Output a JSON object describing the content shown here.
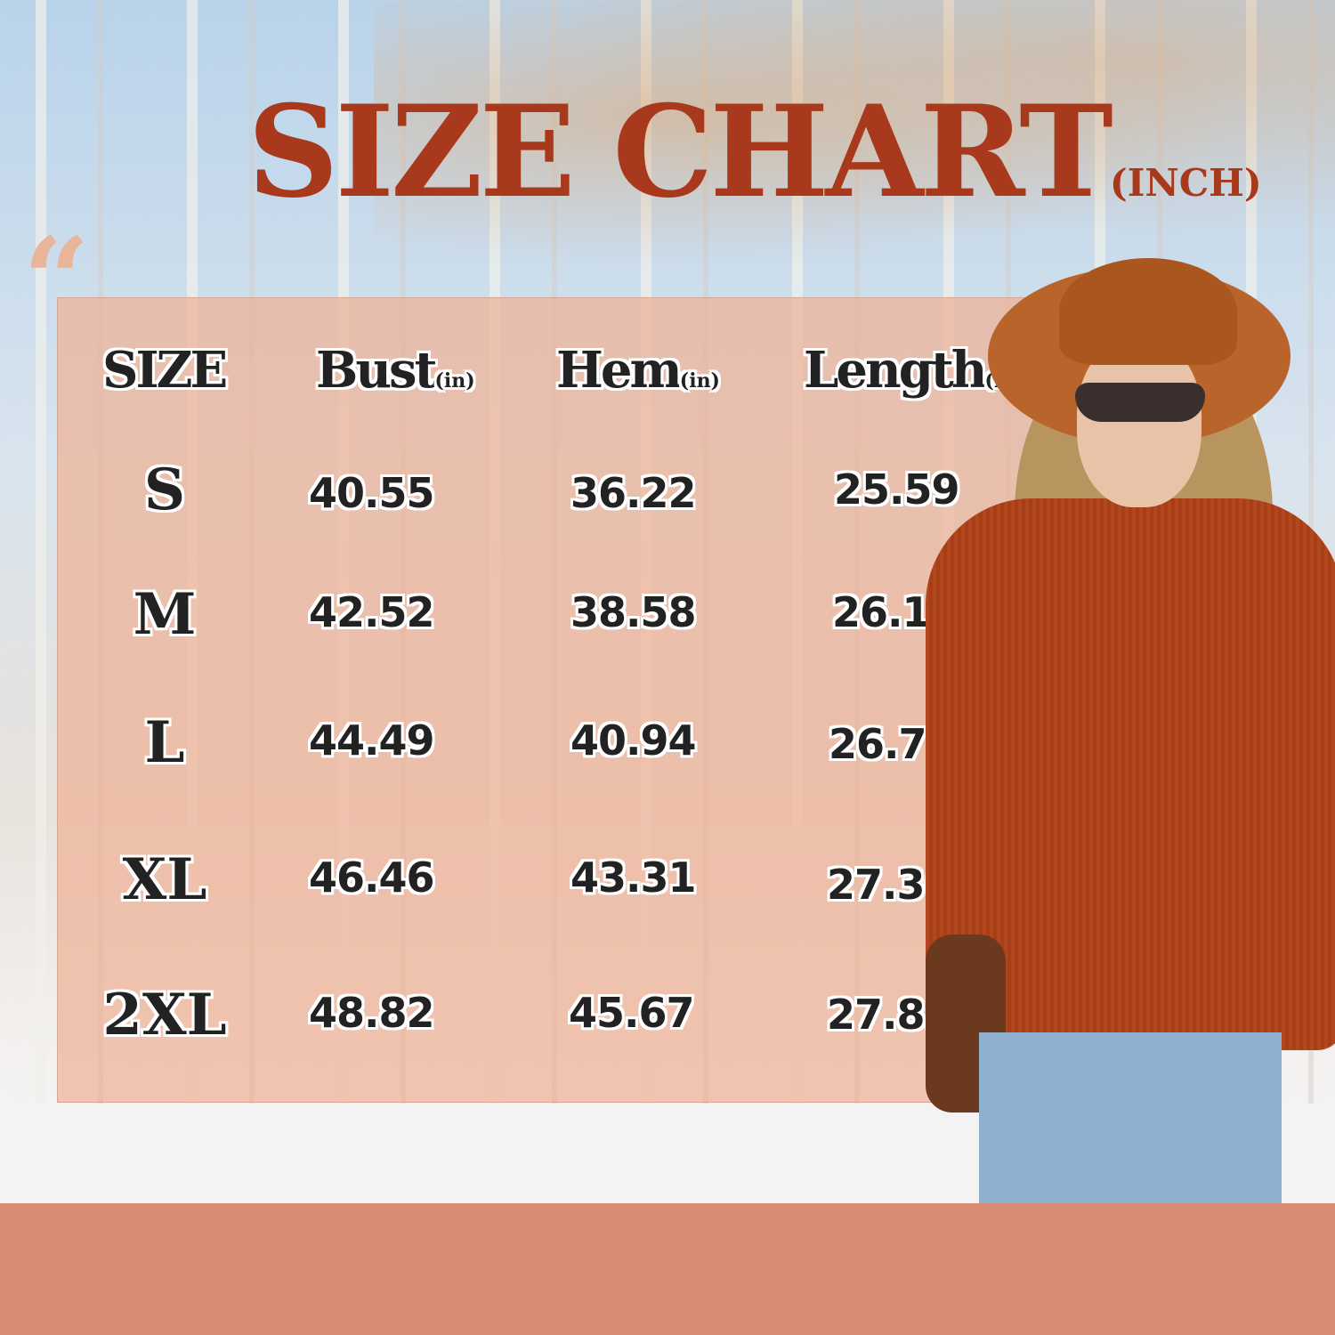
{
  "title": {
    "main": "SIZE CHART",
    "unit": "(INCH)"
  },
  "quote_mark": "“",
  "table": {
    "headers": [
      {
        "label": "SIZE",
        "unit": ""
      },
      {
        "label": "Bust",
        "unit": "(in)"
      },
      {
        "label": "Hem",
        "unit": "(in)"
      },
      {
        "label": "Length",
        "unit": "(in)"
      }
    ],
    "rows": [
      {
        "size": "S",
        "bust": "40.55",
        "hem": "36.22",
        "length": "25.59"
      },
      {
        "size": "M",
        "bust": "42.52",
        "hem": "38.58",
        "length": "26.18"
      },
      {
        "size": "L",
        "bust": "44.49",
        "hem": "40.94",
        "length": "26.77"
      },
      {
        "size": "XL",
        "bust": "46.46",
        "hem": "43.31",
        "length": "27.36"
      },
      {
        "size": "2XL",
        "bust": "48.82",
        "hem": "45.67",
        "length": "27.85"
      }
    ]
  },
  "colors": {
    "title": "#a9391c",
    "panel": "#eeb296",
    "bottom_band": "#d98a72",
    "sweater": "#b3461c"
  }
}
